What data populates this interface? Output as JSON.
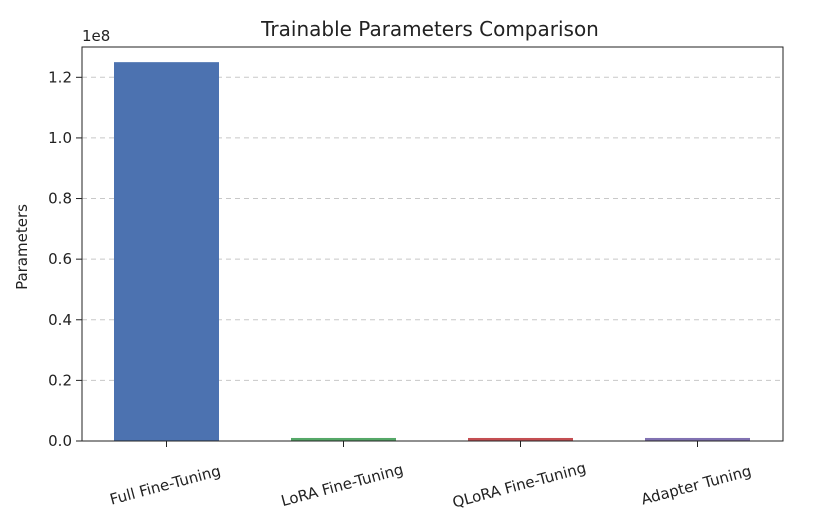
{
  "chart_data": {
    "type": "bar",
    "title": "Trainable Parameters Comparison",
    "xlabel": "",
    "ylabel": "Parameters",
    "y_scale_label": "1e8",
    "categories": [
      "Full Fine-Tuning",
      "LoRA Fine-Tuning",
      "QLoRA Fine-Tuning",
      "Adapter Tuning"
    ],
    "values": [
      125000000,
      1000000,
      1000000,
      1000000
    ],
    "colors": [
      "#4c72b0",
      "#55a868",
      "#c44e52",
      "#8172b2"
    ],
    "ylim": [
      0,
      130000000
    ],
    "yticks": [
      0,
      20000000,
      40000000,
      60000000,
      80000000,
      100000000,
      120000000
    ],
    "ytick_labels": [
      "0.0",
      "0.2",
      "0.4",
      "0.6",
      "0.8",
      "1.0",
      "1.2"
    ],
    "grid": "y-dashed",
    "legend": "none"
  }
}
